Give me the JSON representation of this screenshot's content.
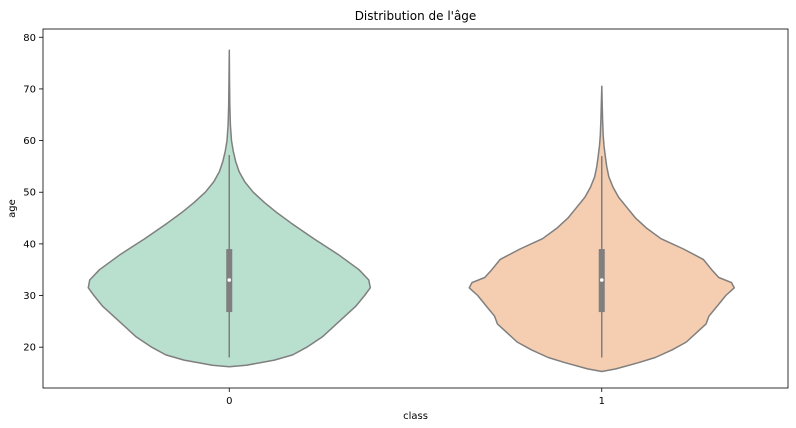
{
  "chart_data": {
    "type": "violin",
    "title": "Distribution de l'âge",
    "xlabel": "class",
    "ylabel": "age",
    "categories": [
      "0",
      "1"
    ],
    "ylim": [
      12.1,
      81.6
    ],
    "yticks": [
      20,
      30,
      40,
      50,
      60,
      70,
      80
    ],
    "grid": false,
    "colors": [
      "#b9dfcf",
      "#f5cdb0"
    ],
    "outline_color": "#7f7f7f",
    "series": [
      {
        "category": "0",
        "min": 18,
        "q1": 26.8,
        "median": 33,
        "q3": 39,
        "max": 57.2,
        "kde_low": 16.2,
        "kde_high": 77.5,
        "density_profile": [
          [
            16.2,
            0.0
          ],
          [
            16.5,
            0.12
          ],
          [
            17.5,
            0.32
          ],
          [
            18.5,
            0.45
          ],
          [
            20,
            0.55
          ],
          [
            22,
            0.66
          ],
          [
            25,
            0.78
          ],
          [
            28,
            0.9
          ],
          [
            30,
            0.96
          ],
          [
            31.5,
            1.0
          ],
          [
            33,
            0.99
          ],
          [
            35,
            0.92
          ],
          [
            38,
            0.77
          ],
          [
            41,
            0.6
          ],
          [
            44,
            0.44
          ],
          [
            46,
            0.34
          ],
          [
            48,
            0.25
          ],
          [
            50,
            0.17
          ],
          [
            52,
            0.11
          ],
          [
            54,
            0.07
          ],
          [
            56,
            0.045
          ],
          [
            58,
            0.028
          ],
          [
            60,
            0.016
          ],
          [
            63,
            0.008
          ],
          [
            67,
            0.004
          ],
          [
            72,
            0.002
          ],
          [
            77.5,
            0.0
          ]
        ]
      },
      {
        "category": "1",
        "min": 18,
        "q1": 26.8,
        "median": 33,
        "q3": 39,
        "max": 57,
        "kde_low": 15.3,
        "kde_high": 70.5,
        "density_profile": [
          [
            15.3,
            0.0
          ],
          [
            15.8,
            0.1
          ],
          [
            17,
            0.26
          ],
          [
            18,
            0.38
          ],
          [
            19.5,
            0.5
          ],
          [
            21,
            0.6
          ],
          [
            23,
            0.68
          ],
          [
            24.5,
            0.74
          ],
          [
            26,
            0.76
          ],
          [
            28,
            0.82
          ],
          [
            30,
            0.88
          ],
          [
            31.5,
            0.94
          ],
          [
            32.5,
            0.92
          ],
          [
            33.5,
            0.83
          ],
          [
            35,
            0.78
          ],
          [
            37,
            0.72
          ],
          [
            39,
            0.58
          ],
          [
            41,
            0.42
          ],
          [
            43,
            0.32
          ],
          [
            45,
            0.24
          ],
          [
            47,
            0.18
          ],
          [
            49,
            0.12
          ],
          [
            51,
            0.08
          ],
          [
            53,
            0.05
          ],
          [
            55,
            0.035
          ],
          [
            57,
            0.025
          ],
          [
            59,
            0.016
          ],
          [
            61,
            0.01
          ],
          [
            64,
            0.006
          ],
          [
            67,
            0.003
          ],
          [
            70.5,
            0.0
          ]
        ]
      }
    ]
  }
}
